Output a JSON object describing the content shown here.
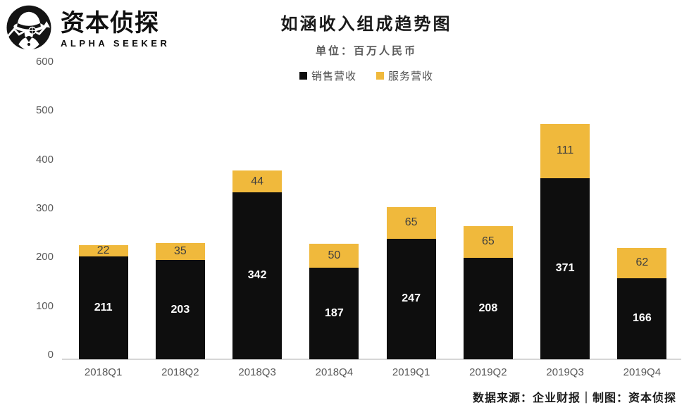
{
  "brand": {
    "name": "资本侦探",
    "subtitle": "ALPHA SEEKER"
  },
  "header": {
    "title": "如涵收入组成趋势图",
    "subtitle": "单位：百万人民币"
  },
  "footer": {
    "text": "数据来源：企业财报｜制图：资本侦探"
  },
  "colors": {
    "sales": "#0e0e0e",
    "service": "#f0b93c",
    "axis_text": "#595959",
    "sales_label": "#ffffff",
    "service_label": "#3f3f3f"
  },
  "chart_data": {
    "type": "bar",
    "stacked": true,
    "title": "如涵收入组成趋势图",
    "subtitle": "单位：百万人民币",
    "categories": [
      "2018Q1",
      "2018Q2",
      "2018Q3",
      "2018Q4",
      "2019Q1",
      "2019Q2",
      "2019Q3",
      "2019Q4"
    ],
    "series": [
      {
        "key": "sales",
        "name": "销售营收",
        "color": "#0e0e0e",
        "label_color": "#ffffff",
        "values": [
          211,
          203,
          342,
          187,
          247,
          208,
          371,
          166
        ]
      },
      {
        "key": "service",
        "name": "服务营收",
        "color": "#f0b93c",
        "label_color": "#3f3f3f",
        "values": [
          22,
          35,
          44,
          50,
          65,
          65,
          111,
          62
        ]
      }
    ],
    "yticks": [
      0,
      100,
      200,
      300,
      400,
      500,
      600
    ],
    "ylim": [
      0,
      600
    ],
    "xlabel": "",
    "ylabel": "",
    "grid": false,
    "legend_position": "top"
  }
}
